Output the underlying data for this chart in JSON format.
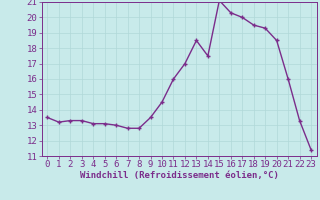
{
  "x": [
    0,
    1,
    2,
    3,
    4,
    5,
    6,
    7,
    8,
    9,
    10,
    11,
    12,
    13,
    14,
    15,
    16,
    17,
    18,
    19,
    20,
    21,
    22,
    23
  ],
  "y": [
    13.5,
    13.2,
    13.3,
    13.3,
    13.1,
    13.1,
    13.0,
    12.8,
    12.8,
    13.5,
    14.5,
    16.0,
    17.0,
    18.5,
    17.5,
    21.1,
    20.3,
    20.0,
    19.5,
    19.3,
    18.5,
    16.0,
    13.3,
    11.4
  ],
  "line_color": "#7b2d8b",
  "marker": "+",
  "marker_color": "#7b2d8b",
  "bg_color": "#c8eaea",
  "grid_color": "#b0d8d8",
  "xlabel": "Windchill (Refroidissement éolien,°C)",
  "xlabel_color": "#7b2d8b",
  "tick_color": "#7b2d8b",
  "spine_color": "#7b2d8b",
  "ylim": [
    11,
    21
  ],
  "xlim": [
    -0.5,
    23.5
  ],
  "yticks": [
    11,
    12,
    13,
    14,
    15,
    16,
    17,
    18,
    19,
    20,
    21
  ],
  "xticks": [
    0,
    1,
    2,
    3,
    4,
    5,
    6,
    7,
    8,
    9,
    10,
    11,
    12,
    13,
    14,
    15,
    16,
    17,
    18,
    19,
    20,
    21,
    22,
    23
  ],
  "font_size": 6.5,
  "line_width": 1.0,
  "marker_size": 3.5
}
